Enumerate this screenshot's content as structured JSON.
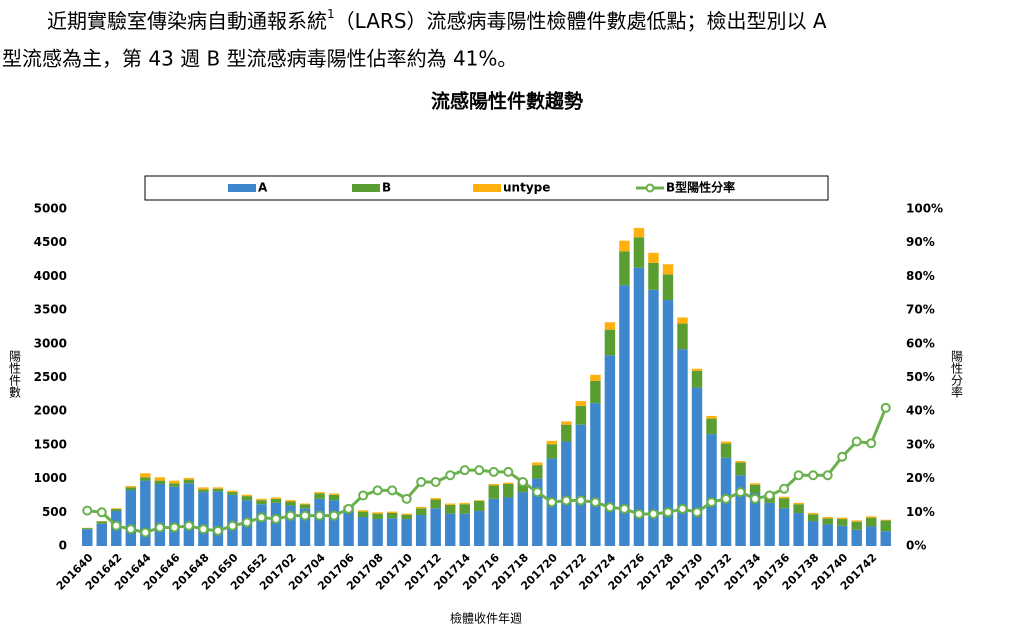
{
  "paragraph": {
    "line1_start": "近期實驗室傳染病自動通報系統",
    "footnote": "1",
    "line1_end": "（LARS）流感病毒陽性檢體件數處低點；檢出型別以 A",
    "line2": "型流感為主，第 43 週 B 型流感病毒陽性佔率約為 41%。"
  },
  "chart_data": {
    "type": "bar",
    "stacked": true,
    "title": "流感陽性件數趨勢",
    "x_label": "檢體收件年週",
    "y_label": "陽性件數",
    "y2_label": "陽性分率",
    "categories": [
      "201640",
      null,
      "201642",
      null,
      "201644",
      null,
      "201646",
      null,
      "201648",
      null,
      "201650",
      null,
      "201652",
      null,
      "201702",
      null,
      "201704",
      null,
      "201706",
      null,
      "201708",
      null,
      "201710",
      null,
      "201712",
      null,
      "201714",
      null,
      "201716",
      null,
      "201718",
      null,
      "201720",
      null,
      "201722",
      null,
      "201724",
      null,
      "201726",
      null,
      "201728",
      null,
      "201730",
      null,
      "201732",
      null,
      "201734",
      null,
      "201736",
      null,
      "201738",
      null,
      "201740",
      null,
      "201742",
      null
    ],
    "series": [
      {
        "name": "A",
        "type": "bar",
        "color": "#3f87cc",
        "values": [
          250,
          330,
          520,
          830,
          970,
          920,
          880,
          930,
          800,
          810,
          760,
          680,
          620,
          640,
          600,
          560,
          700,
          680,
          510,
          430,
          400,
          410,
          400,
          460,
          560,
          480,
          480,
          520,
          700,
          720,
          800,
          1000,
          1300,
          1550,
          1800,
          2120,
          2830,
          3870,
          4130,
          3800,
          3650,
          2920,
          2350,
          1660,
          1310,
          1050,
          780,
          640,
          560,
          490,
          370,
          320,
          300,
          240,
          290,
          220
        ]
      },
      {
        "name": "B",
        "type": "bar",
        "color": "#5a9e32",
        "values": [
          15,
          35,
          30,
          40,
          50,
          50,
          50,
          55,
          40,
          40,
          40,
          60,
          60,
          60,
          60,
          55,
          80,
          80,
          70,
          80,
          80,
          80,
          65,
          100,
          130,
          130,
          140,
          150,
          200,
          200,
          160,
          200,
          210,
          250,
          280,
          330,
          380,
          500,
          450,
          400,
          380,
          380,
          250,
          230,
          210,
          190,
          130,
          110,
          150,
          130,
          100,
          90,
          100,
          120,
          130,
          160
        ]
      },
      {
        "name": "untype",
        "type": "bar",
        "color": "#ffb00f",
        "values": [
          5,
          5,
          10,
          20,
          60,
          50,
          40,
          25,
          30,
          20,
          20,
          20,
          20,
          20,
          20,
          15,
          20,
          20,
          20,
          20,
          20,
          20,
          15,
          20,
          20,
          20,
          20,
          10,
          20,
          20,
          20,
          40,
          50,
          50,
          70,
          90,
          110,
          160,
          140,
          150,
          150,
          90,
          30,
          40,
          30,
          20,
          20,
          20,
          20,
          20,
          20,
          20,
          20,
          20,
          20,
          10
        ]
      },
      {
        "name": "B型陽性分率",
        "type": "line",
        "axis": "y2",
        "color": "#6ab04c",
        "values": [
          10.5,
          10,
          6,
          5,
          4,
          5.5,
          5.5,
          6,
          5,
          4.5,
          6,
          7,
          8.5,
          8,
          9,
          9,
          9,
          9,
          11,
          15,
          16.5,
          16.5,
          14,
          19,
          19,
          21,
          22.5,
          22.5,
          22,
          22,
          19,
          16,
          13,
          13.5,
          13.5,
          13,
          11.5,
          11,
          9.5,
          9.5,
          10,
          11,
          10,
          13,
          14,
          16,
          14,
          15,
          17,
          21,
          21,
          21,
          26.5,
          31,
          30.5,
          41
        ]
      }
    ],
    "ylim": [
      0,
      5000
    ],
    "yticks": [
      0,
      500,
      1000,
      1500,
      2000,
      2500,
      3000,
      3500,
      4000,
      4500,
      5000
    ],
    "y2lim": [
      0,
      100
    ],
    "y2ticks": [
      {
        "value": 0,
        "label": "0%"
      },
      {
        "value": 10,
        "label": "10%"
      },
      {
        "value": 20,
        "label": "20%"
      },
      {
        "value": 30,
        "label": "30%"
      },
      {
        "value": 40,
        "label": "40%"
      },
      {
        "value": 50,
        "label": "50%"
      },
      {
        "value": 60,
        "label": "60%"
      },
      {
        "value": 70,
        "label": "70%"
      },
      {
        "value": 80,
        "label": "80%"
      },
      {
        "value": 90,
        "label": "90%"
      },
      {
        "value": 100,
        "label": "100%"
      }
    ],
    "legend": "top"
  }
}
